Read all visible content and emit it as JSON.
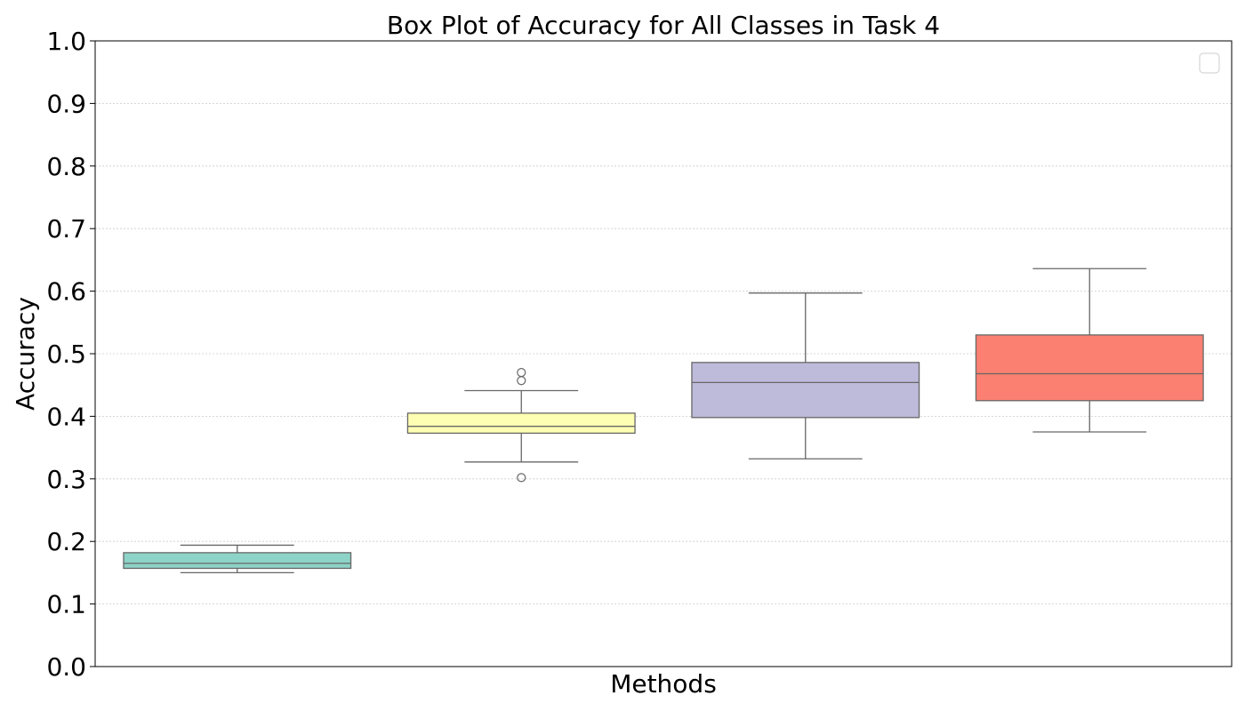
{
  "chart_data": {
    "type": "box",
    "title": "Box Plot of Accuracy for All Classes in Task 4",
    "xlabel": "Methods",
    "ylabel": "Accuracy",
    "ylim": [
      0.0,
      1.0
    ],
    "yticks": [
      0.0,
      0.1,
      0.2,
      0.3,
      0.4,
      0.5,
      0.6,
      0.7,
      0.8,
      0.9,
      1.0
    ],
    "ytick_labels": [
      "0.0",
      "0.1",
      "0.2",
      "0.3",
      "0.4",
      "0.5",
      "0.6",
      "0.7",
      "0.8",
      "0.9",
      "1.0"
    ],
    "grid": "y-dotted",
    "legend": {
      "placement": "top-right",
      "entries": []
    },
    "series": [
      {
        "color": "#8dd3c7",
        "whisker_low": 0.15,
        "q1": 0.157,
        "median": 0.165,
        "q3": 0.182,
        "whisker_high": 0.194,
        "outliers": []
      },
      {
        "color": "#ffffb3",
        "whisker_low": 0.327,
        "q1": 0.373,
        "median": 0.384,
        "q3": 0.405,
        "whisker_high": 0.441,
        "outliers": [
          0.302,
          0.457,
          0.47
        ]
      },
      {
        "color": "#bebada",
        "whisker_low": 0.332,
        "q1": 0.398,
        "median": 0.454,
        "q3": 0.486,
        "whisker_high": 0.597,
        "outliers": []
      },
      {
        "color": "#fb8072",
        "whisker_low": 0.375,
        "q1": 0.425,
        "median": 0.468,
        "q3": 0.53,
        "whisker_high": 0.636,
        "outliers": []
      }
    ]
  }
}
